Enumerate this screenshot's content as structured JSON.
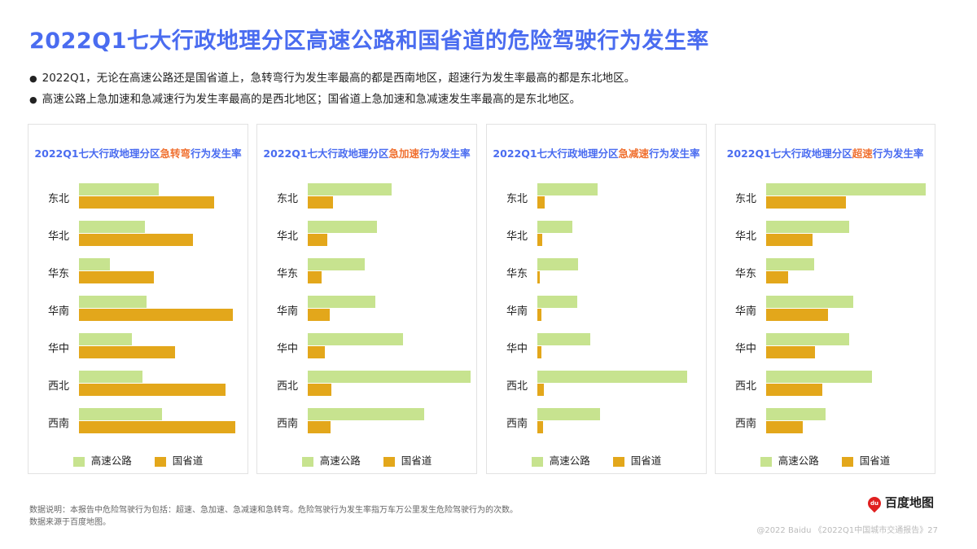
{
  "title": "2022Q1七大行政地理分区高速公路和国省道的危险驾驶行为发生率",
  "bullets": [
    "2022Q1，无论在高速公路还是国省道上，急转弯行为发生率最高的都是西南地区，超速行为发生率最高的都是东北地区。",
    "高速公路上急加速和急减速行为发生率最高的是西北地区；国省道上急加速和急减速发生率最高的是东北地区。"
  ],
  "colors": {
    "highway": "#c7e38f",
    "national": "#e3a71b",
    "title": "#4a6cf0",
    "highlight": "#f07030"
  },
  "chart_data": [
    {
      "type": "bar",
      "orientation": "horizontal",
      "title_prefix": "2022Q1七大行政地理分区",
      "title_highlight": "急转弯",
      "title_suffix": "行为发生率",
      "categories": [
        "东北",
        "华北",
        "华东",
        "华南",
        "华中",
        "西北",
        "西南"
      ],
      "series": [
        {
          "name": "高速公路",
          "values": [
            98,
            81,
            38,
            83,
            65,
            78,
            102
          ]
        },
        {
          "name": "国省道",
          "values": [
            166,
            140,
            92,
            189,
            118,
            180,
            192
          ]
        }
      ],
      "legend": "bottom"
    },
    {
      "type": "bar",
      "orientation": "horizontal",
      "title_prefix": "2022Q1七大行政地理分区",
      "title_highlight": "急加速",
      "title_suffix": "行为发生率",
      "categories": [
        "东北",
        "华北",
        "华东",
        "华南",
        "华中",
        "西北",
        "西南"
      ],
      "series": [
        {
          "name": "高速公路",
          "values": [
            103,
            85,
            70,
            83,
            117,
            200,
            143
          ]
        },
        {
          "name": "国省道",
          "values": [
            31,
            24,
            17,
            27,
            21,
            29,
            28
          ]
        }
      ],
      "legend": "bottom"
    },
    {
      "type": "bar",
      "orientation": "horizontal",
      "title_prefix": "2022Q1七大行政地理分区",
      "title_highlight": "急减速",
      "title_suffix": "行为发生率",
      "categories": [
        "东北",
        "华北",
        "华东",
        "华南",
        "华中",
        "西北",
        "西南"
      ],
      "series": [
        {
          "name": "高速公路",
          "values": [
            74,
            43,
            50,
            49,
            65,
            184,
            77
          ]
        },
        {
          "name": "国省道",
          "values": [
            9,
            6,
            3,
            5,
            5,
            8,
            7
          ]
        }
      ],
      "legend": "bottom"
    },
    {
      "type": "bar",
      "orientation": "horizontal",
      "title_prefix": "2022Q1七大行政地理分区",
      "title_highlight": "超速",
      "title_suffix": "行为发生率",
      "categories": [
        "东北",
        "华北",
        "华东",
        "华南",
        "华中",
        "西北",
        "西南"
      ],
      "series": [
        {
          "name": "高速公路",
          "values": [
            196,
            102,
            59,
            107,
            102,
            130,
            73
          ]
        },
        {
          "name": "国省道",
          "values": [
            98,
            57,
            27,
            76,
            60,
            69,
            45
          ]
        }
      ],
      "legend": "bottom"
    }
  ],
  "notes": [
    "数据说明：本报告中危险驾驶行为包括：超速、急加速、急减速和急转弯。危险驾驶行为发生率指万车万公里发生危险驾驶行为的次数。",
    "数据来源于百度地图。"
  ],
  "logo": {
    "text": "百度地图",
    "badge": "du"
  },
  "footer": "@2022 Baidu 《2022Q1中国城市交通报告》27"
}
